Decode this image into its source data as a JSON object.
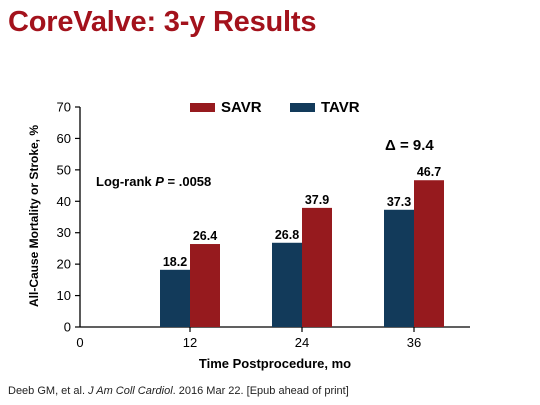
{
  "slide": {
    "title": "CoreValve: 3-y Results"
  },
  "citation": {
    "prefix": "Deeb GM, et al. ",
    "journal": "J Am Coll Cardiol",
    "suffix": ". 2016 Mar 22. [Epub ahead of print]"
  },
  "annotations": {
    "logrank_prefix": "Log-rank ",
    "logrank_p": "P",
    "logrank_value": " = .0058",
    "delta": "Δ = 9.4"
  },
  "chart_data": {
    "type": "bar",
    "categories": [
      "12",
      "24",
      "36"
    ],
    "series": [
      {
        "name": "TAVR",
        "color": "#123a5a",
        "values": [
          18.2,
          26.8,
          37.3
        ]
      },
      {
        "name": "SAVR",
        "color": "#961a1e",
        "values": [
          26.4,
          37.9,
          46.7
        ]
      }
    ],
    "legend_order": [
      "SAVR",
      "TAVR"
    ],
    "legend_position": "top-center",
    "xlabel": "Time Postprocedure, mo",
    "ylabel": "All-Cause Mortality or Stroke, %",
    "ylim": [
      0,
      70
    ],
    "yticks": [
      0,
      10,
      20,
      30,
      40,
      50,
      60,
      70
    ],
    "xticks": [
      "0",
      "12",
      "24",
      "36"
    ],
    "grid": false
  }
}
